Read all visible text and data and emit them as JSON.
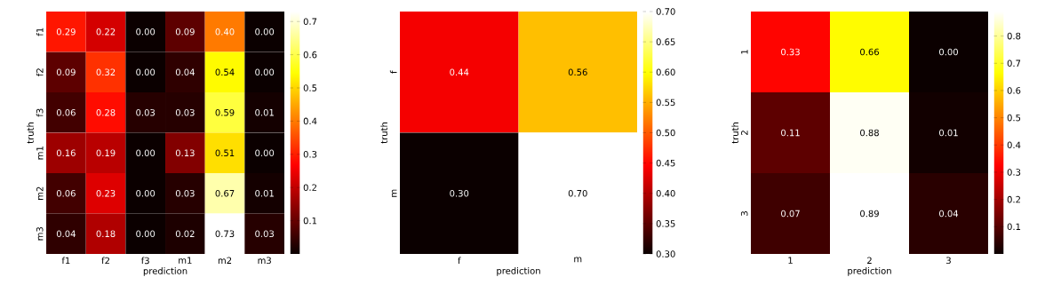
{
  "chart_data": [
    {
      "type": "heatmap",
      "xlabel": "prediction",
      "ylabel": "truth",
      "categories": [
        "f1",
        "f2",
        "f3",
        "m1",
        "m2",
        "m3"
      ],
      "y_categories": [
        "f1",
        "f2",
        "f3",
        "m1",
        "m2",
        "m3"
      ],
      "cells": [
        [
          0.29,
          0.22,
          0.0,
          0.09,
          0.4,
          0.0
        ],
        [
          0.09,
          0.32,
          0.0,
          0.04,
          0.54,
          0.0
        ],
        [
          0.06,
          0.28,
          0.03,
          0.03,
          0.59,
          0.01
        ],
        [
          0.16,
          0.19,
          0.0,
          0.13,
          0.51,
          0.0
        ],
        [
          0.06,
          0.23,
          0.0,
          0.03,
          0.67,
          0.01
        ],
        [
          0.04,
          0.18,
          0.0,
          0.02,
          0.73,
          0.03
        ]
      ],
      "cell_labels": [
        [
          "0.29",
          "0.22",
          "0.00",
          "0.09",
          "0.40",
          "0.00"
        ],
        [
          "0.09",
          "0.32",
          "0.00",
          "0.04",
          "0.54",
          "0.00"
        ],
        [
          "0.06",
          "0.28",
          "0.03",
          "0.03",
          "0.59",
          "0.01"
        ],
        [
          "0.16",
          "0.19",
          "0.00",
          "0.13",
          "0.51",
          "0.00"
        ],
        [
          "0.06",
          "0.23",
          "0.00",
          "0.03",
          "0.67",
          "0.01"
        ],
        [
          "0.04",
          "0.18",
          "0.00",
          "0.02",
          "0.73",
          "0.03"
        ]
      ],
      "clim": [
        0,
        0.73
      ],
      "cticks": [
        0.1,
        0.2,
        0.3,
        0.4,
        0.5,
        0.6,
        0.7
      ]
    },
    {
      "type": "heatmap",
      "xlabel": "prediction",
      "ylabel": "truth",
      "categories": [
        "f",
        "m"
      ],
      "y_categories": [
        "f",
        "m"
      ],
      "cells": [
        [
          0.44,
          0.56
        ],
        [
          0.3,
          0.7
        ]
      ],
      "clim": [
        0.3,
        0.7
      ],
      "cticks": [
        {
          "value": 0.3,
          "label": "0.30"
        },
        {
          "value": 0.35,
          "label": "0.35"
        },
        {
          "value": 0.4,
          "label": "0.40"
        },
        {
          "value": 0.45,
          "label": "0.45"
        },
        {
          "value": 0.5,
          "label": "0.50"
        },
        {
          "value": 0.55,
          "label": "0.55"
        },
        {
          "value": 0.6,
          "label": "0.60"
        },
        {
          "value": 0.65,
          "label": "0.65"
        },
        {
          "value": 0.7,
          "label": "0.70"
        }
      ],
      "cell_labels": [
        [
          "0.44",
          "0.56"
        ],
        [
          "0.30",
          "0.70"
        ]
      ]
    },
    {
      "type": "heatmap",
      "xlabel": "prediction",
      "ylabel": "truth",
      "categories": [
        "1",
        "2",
        "3"
      ],
      "y_categories": [
        "1",
        "2",
        "3"
      ],
      "cells": [
        [
          0.33,
          0.66,
          0.0
        ],
        [
          0.11,
          0.88,
          0.01
        ],
        [
          0.07,
          0.89,
          0.04
        ]
      ],
      "cell_labels": [
        [
          "0.33",
          "0.66",
          "0.00"
        ],
        [
          "0.11",
          "0.88",
          "0.01"
        ],
        [
          "0.07",
          "0.89",
          "0.04"
        ]
      ],
      "clim": [
        0,
        0.89
      ],
      "cticks": [
        0.1,
        0.2,
        0.3,
        0.4,
        0.5,
        0.6,
        0.7,
        0.8
      ]
    }
  ]
}
